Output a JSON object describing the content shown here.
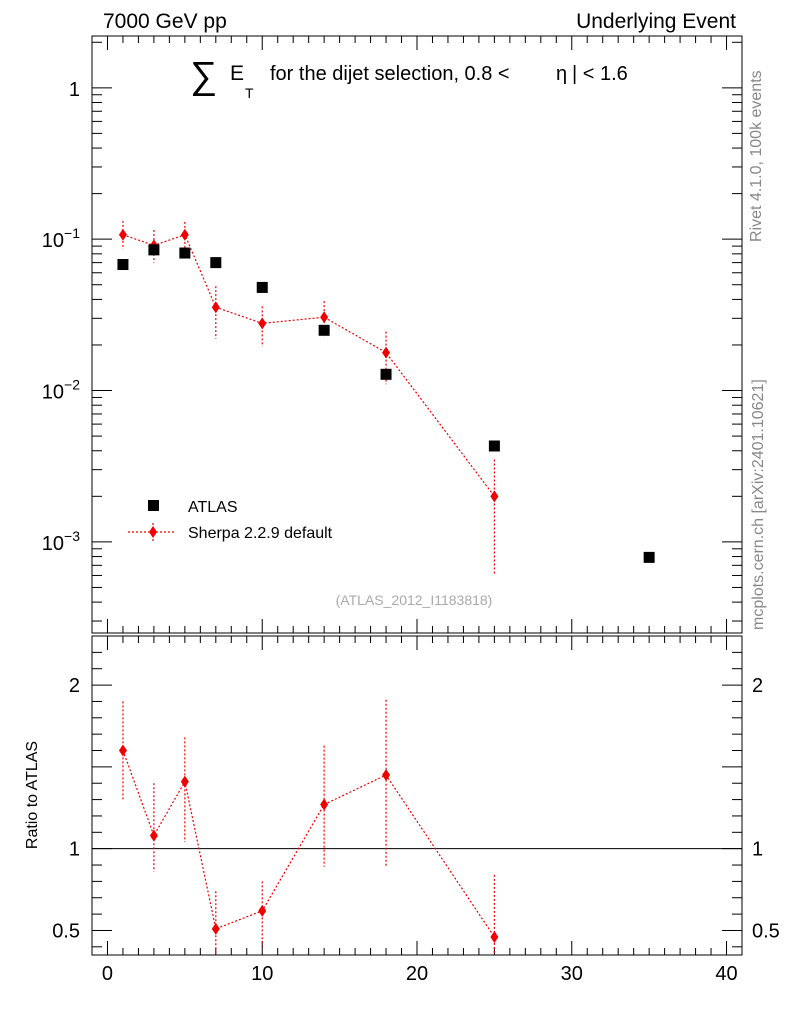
{
  "header": {
    "left": "7000 GeV pp",
    "right": "Underlying Event"
  },
  "title": {
    "sigma": "∑",
    "e": "E",
    "t": "T",
    "text": "for the dijet selection, 0.8 <",
    "eta": "η",
    "tail": "| < 1.6"
  },
  "side": {
    "rivet": "Rivet 4.1.0,  100k events",
    "mcplots": "mcplots.cern.ch [arXiv:2401.10621]"
  },
  "analysis": "(ATLAS_2012_I1183818)",
  "colors": {
    "mc": "#ee0000",
    "data": "#000000"
  },
  "chart_data": [
    {
      "type": "scatter",
      "yscale": "log",
      "xlim": [
        -1,
        41
      ],
      "ylim": [
        0.00025,
        2.2
      ],
      "yticks": [
        {
          "value": 1,
          "base": "1",
          "exp": ""
        },
        {
          "value": 0.1,
          "base": "10",
          "exp": "−1"
        },
        {
          "value": 0.01,
          "base": "10",
          "exp": "−2"
        },
        {
          "value": 0.001,
          "base": "10",
          "exp": "−3"
        }
      ],
      "legend": {
        "position": "bottom-left",
        "data_label": "ATLAS",
        "mc_label": "Sherpa 2.2.9 default"
      },
      "series": [
        {
          "name": "ATLAS",
          "marker": "square",
          "points": [
            {
              "x": 1,
              "y": 0.068
            },
            {
              "x": 3,
              "y": 0.085
            },
            {
              "x": 5,
              "y": 0.081
            },
            {
              "x": 7,
              "y": 0.07
            },
            {
              "x": 10,
              "y": 0.048
            },
            {
              "x": 14,
              "y": 0.025
            },
            {
              "x": 18,
              "y": 0.0128
            },
            {
              "x": 25,
              "y": 0.0043
            },
            {
              "x": 35,
              "y": 0.00079
            }
          ]
        },
        {
          "name": "Sherpa 2.2.9 default",
          "marker": "diamond",
          "points": [
            {
              "x": 1,
              "y": 0.107,
              "lo": 0.086,
              "hi": 0.132
            },
            {
              "x": 3,
              "y": 0.091,
              "lo": 0.07,
              "hi": 0.115
            },
            {
              "x": 5,
              "y": 0.107,
              "lo": 0.088,
              "hi": 0.13
            },
            {
              "x": 7,
              "y": 0.0355,
              "lo": 0.022,
              "hi": 0.049
            },
            {
              "x": 10,
              "y": 0.0278,
              "lo": 0.0195,
              "hi": 0.036
            },
            {
              "x": 14,
              "y": 0.0305,
              "lo": 0.0225,
              "hi": 0.039
            },
            {
              "x": 18,
              "y": 0.0178,
              "lo": 0.011,
              "hi": 0.0245
            },
            {
              "x": 25,
              "y": 0.002,
              "lo": 0.0006,
              "hi": 0.0035
            }
          ]
        }
      ]
    },
    {
      "type": "scatter",
      "ylabel": "Ratio to ATLAS",
      "xlim": [
        -1,
        41
      ],
      "ylim": [
        0.35,
        2.3
      ],
      "xticks": [
        0,
        10,
        20,
        30,
        40
      ],
      "yticks": [
        {
          "value": 0.5,
          "label": "0.5"
        },
        {
          "value": 1,
          "label": "1"
        },
        {
          "value": 2,
          "label": "2"
        }
      ],
      "reference_line": 1,
      "series": [
        {
          "name": "Sherpa 2.2.9 default",
          "points": [
            {
              "x": 1,
              "y": 1.6,
              "lo": 1.3,
              "hi": 1.9
            },
            {
              "x": 3,
              "y": 1.08,
              "lo": 0.86,
              "hi": 1.4
            },
            {
              "x": 5,
              "y": 1.41,
              "lo": 1.04,
              "hi": 1.68
            },
            {
              "x": 7,
              "y": 0.51,
              "lo": 0.35,
              "hi": 0.74
            },
            {
              "x": 10,
              "y": 0.62,
              "lo": 0.4,
              "hi": 0.8
            },
            {
              "x": 14,
              "y": 1.27,
              "lo": 0.89,
              "hi": 1.63
            },
            {
              "x": 18,
              "y": 1.45,
              "lo": 0.89,
              "hi": 1.91
            },
            {
              "x": 25,
              "y": 0.46,
              "lo": 0.35,
              "hi": 0.84
            }
          ]
        }
      ]
    }
  ]
}
